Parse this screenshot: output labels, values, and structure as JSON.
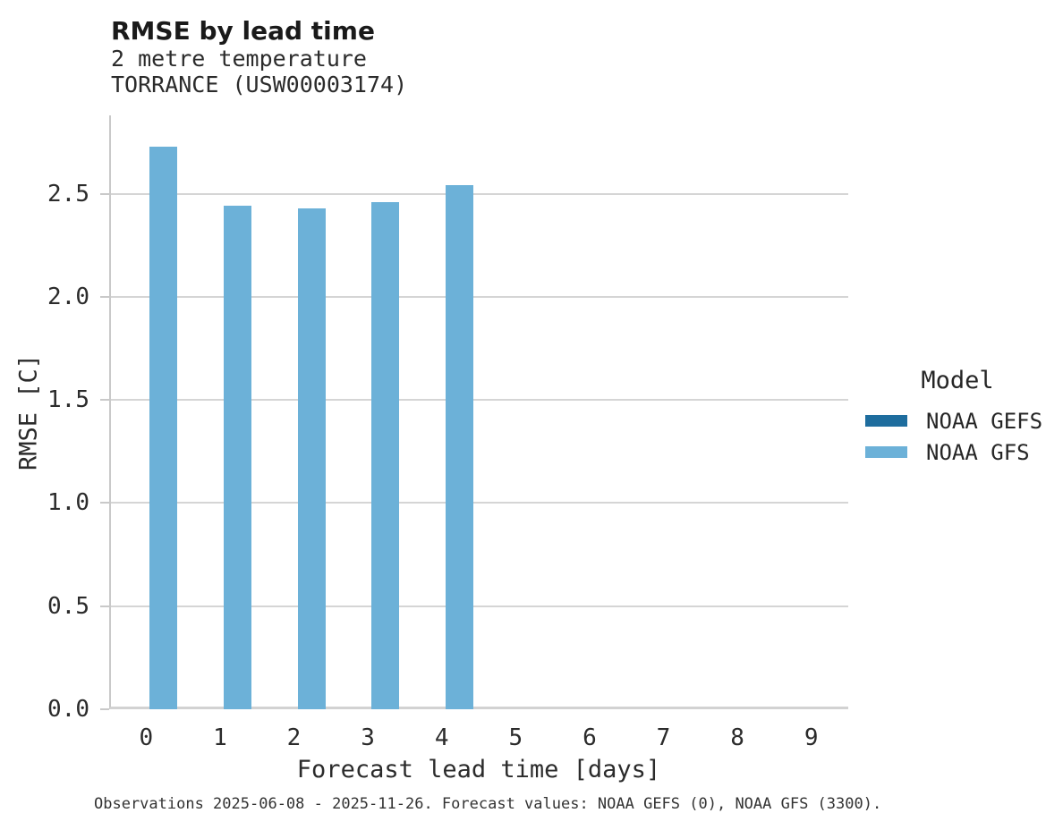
{
  "caption": "Observations 2025-06-08 - 2025-11-26. Forecast values: NOAA GEFS (0), NOAA GFS (3300).",
  "chart_data": {
    "type": "bar",
    "title": "RMSE by lead time",
    "subtitle": [
      "2 metre temperature",
      "TORRANCE (USW00003174)"
    ],
    "xlabel": "Forecast lead time [days]",
    "ylabel": "RMSE [C]",
    "categories": [
      "0",
      "1",
      "2",
      "3",
      "4",
      "5",
      "6",
      "7",
      "8",
      "9"
    ],
    "series": [
      {
        "name": "NOAA GEFS",
        "color": "#1e6d9e",
        "values": [
          0,
          0,
          0,
          0,
          0,
          0,
          0,
          0,
          0,
          0
        ]
      },
      {
        "name": "NOAA GFS",
        "color": "#6cb1d8",
        "values": [
          2.73,
          2.44,
          2.43,
          2.46,
          2.54,
          null,
          null,
          null,
          null,
          null
        ]
      }
    ],
    "ylim": [
      0,
      2.88
    ],
    "ytick_labels": [
      "0.0",
      "0.5",
      "1.0",
      "1.5",
      "2.0",
      "2.5"
    ],
    "grid": true,
    "legend_title": "Model",
    "legend_position": "right",
    "grid_color": "#d5d5d5",
    "axis_color": "#c9c9c9"
  }
}
